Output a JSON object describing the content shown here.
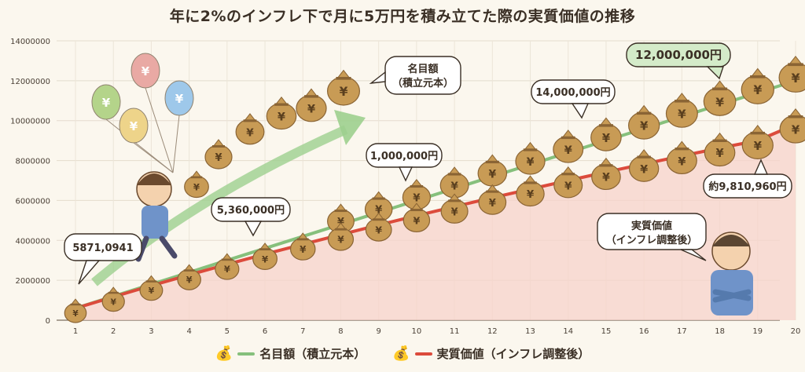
{
  "title": "年に2%のインフレ下で月に5万円を積み立てた際の実質価値の推移",
  "colors": {
    "nominal": "#86c07c",
    "real": "#dc4b3c",
    "real_fill": "#f7d3cb",
    "bag": "#c89b55",
    "bag_dark": "#8a6434",
    "background": "#fbf7ee"
  },
  "chart_data": {
    "type": "line",
    "x": [
      1,
      2,
      3,
      4,
      5,
      6,
      7,
      8,
      9,
      10,
      11,
      12,
      13,
      14,
      15,
      16,
      17,
      18,
      19,
      20
    ],
    "xlim": [
      1,
      20
    ],
    "ylim": [
      0,
      14000000
    ],
    "yticks": [
      0,
      2000000,
      4000000,
      6000000,
      8000000,
      10000000,
      12000000,
      14000000
    ],
    "ytick_labels": [
      "0",
      "2000000",
      "4000000",
      "6000000",
      "8000000",
      "10000000",
      "12000000",
      "14000000"
    ],
    "grid": true,
    "legend": "bottom",
    "series": [
      {
        "name": "名目額（積立元本）",
        "values": [
          600000,
          1200000,
          1800000,
          2400000,
          3000000,
          3600000,
          4200000,
          4800000,
          5400000,
          6000000,
          6600000,
          7200000,
          7800000,
          8400000,
          9000000,
          9600000,
          10200000,
          10800000,
          11400000,
          12000000
        ]
      },
      {
        "name": "実質価値（インフレ調整後）",
        "values": [
          594000,
          1170000,
          1730000,
          2270000,
          2800000,
          3310000,
          3800000,
          4290000,
          4770000,
          5240000,
          5690000,
          6140000,
          6570000,
          7000000,
          7420000,
          7830000,
          8230000,
          8630000,
          9000000,
          9810960
        ]
      }
    ]
  },
  "annotations": {
    "callout_start": "5871,0941",
    "callout_536": "5,360,000円",
    "callout_1m": "1,000,000円",
    "callout_14m": "14,000,000円",
    "callout_12m": "12,000,000円",
    "callout_real_end": "約9,810,960円",
    "nominal_label_1": "名目額",
    "nominal_label_2": "（積立元本）",
    "real_label_1": "実質価値",
    "real_label_2": "（インフレ調整後）",
    "bag_symbol": "¥"
  },
  "legend": {
    "nominal": "名目額（積立元本）",
    "real": "実質価値（インフレ調整後）"
  }
}
